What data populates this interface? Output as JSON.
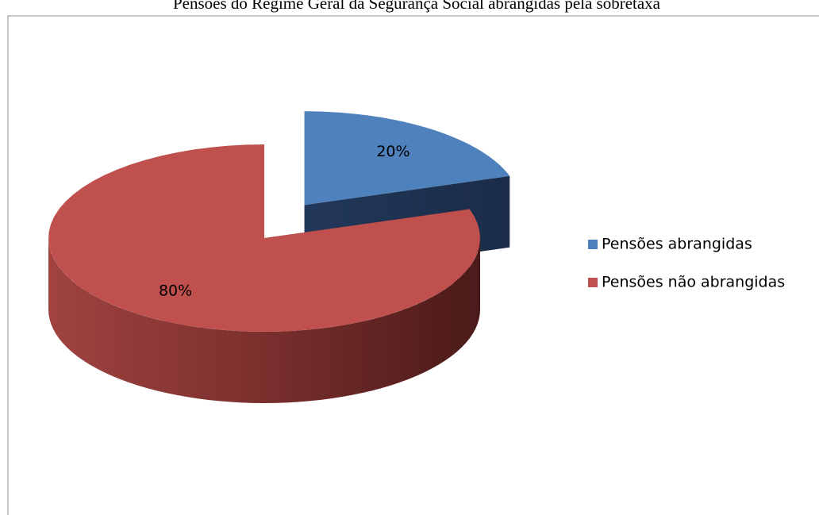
{
  "chart_data": {
    "type": "pie",
    "title": "Pensões do Regime Geral da Segurança Social abrangidas pela sobretaxa",
    "categories": [
      "Pensões abrangidas",
      "Pensões não abrangidas"
    ],
    "values": [
      20,
      80
    ],
    "value_labels": [
      "20%",
      "80%"
    ],
    "colors": [
      "#4f81bd",
      "#c0504d"
    ],
    "legend": "right"
  }
}
